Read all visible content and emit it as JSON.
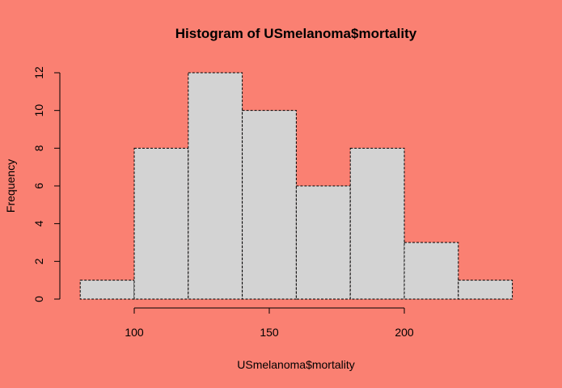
{
  "chart_data": {
    "type": "bar",
    "title": "Histogram of USmelanoma$mortality",
    "xlabel": "USmelanoma$mortality",
    "ylabel": "Frequency",
    "bins": [
      {
        "from": 80,
        "to": 100,
        "count": 1
      },
      {
        "from": 100,
        "to": 120,
        "count": 8
      },
      {
        "from": 120,
        "to": 140,
        "count": 12
      },
      {
        "from": 140,
        "to": 160,
        "count": 10
      },
      {
        "from": 160,
        "to": 180,
        "count": 6
      },
      {
        "from": 180,
        "to": 200,
        "count": 8
      },
      {
        "from": 200,
        "to": 220,
        "count": 3
      },
      {
        "from": 220,
        "to": 240,
        "count": 1
      }
    ],
    "xlim": [
      80,
      240
    ],
    "ylim": [
      0,
      12
    ],
    "x_ticks": [
      100,
      150,
      200
    ],
    "y_ticks": [
      0,
      2,
      4,
      6,
      8,
      10,
      12
    ],
    "grid": false,
    "colors": {
      "background": "#FA8072",
      "bar_fill": "#D3D3D3",
      "bar_border": "#000000"
    }
  }
}
